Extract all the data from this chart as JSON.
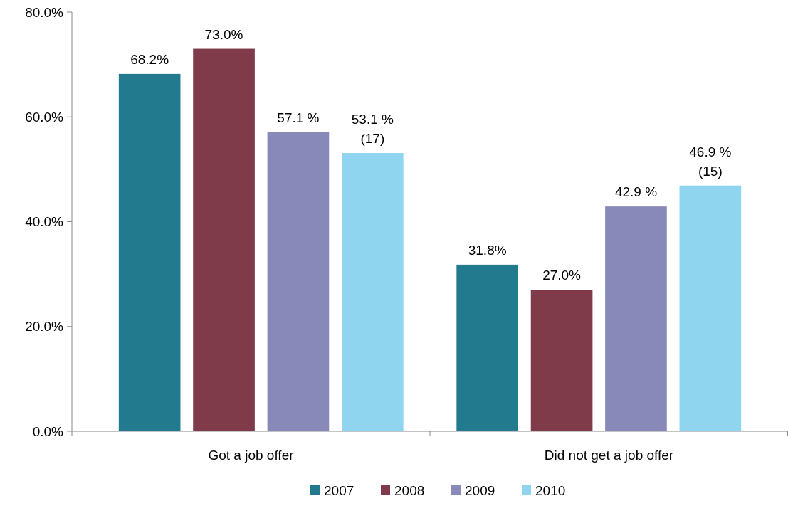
{
  "chart_data": {
    "type": "bar",
    "categories": [
      "Got a job offer",
      "Did not get a job offer"
    ],
    "series": [
      {
        "name": "2007",
        "color": "#217a8e",
        "values": [
          68.2,
          31.8
        ],
        "value_labels": [
          "68.2%",
          "31.8%"
        ]
      },
      {
        "name": "2008",
        "color": "#7f3b4a",
        "values": [
          73.0,
          27.0
        ],
        "value_labels": [
          "73.0%",
          "27.0%"
        ]
      },
      {
        "name": "2009",
        "color": "#8889b8",
        "values": [
          57.1,
          42.9
        ],
        "value_labels": [
          "57.1 %",
          "42.9 %"
        ]
      },
      {
        "name": "2010",
        "color": "#8fd5ef",
        "values": [
          53.1,
          46.9
        ],
        "value_labels": [
          "53.1 %\n(17)",
          "46.9 %\n(15)"
        ]
      }
    ],
    "ylim": [
      0,
      80
    ],
    "yticks": [
      {
        "value": 0,
        "label": "0.0%"
      },
      {
        "value": 20,
        "label": "20.0%"
      },
      {
        "value": 40,
        "label": "40.0%"
      },
      {
        "value": 60,
        "label": "60.0%"
      },
      {
        "value": 80,
        "label": "80.0%"
      }
    ],
    "grid": false,
    "legend": "bottom"
  }
}
